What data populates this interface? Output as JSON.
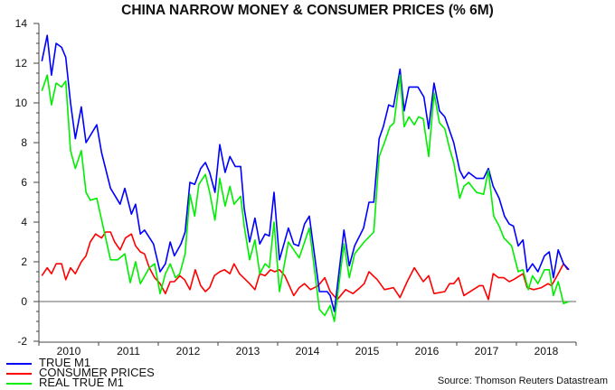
{
  "chart_data": {
    "type": "line",
    "title": "CHINA NARROW MONEY & CONSUMER PRICES (% 6M)",
    "xlabel": "",
    "ylabel": "",
    "ylim": [
      -2,
      14
    ],
    "yticks": [
      -2,
      0,
      2,
      4,
      6,
      8,
      10,
      12,
      14
    ],
    "xlim": [
      2010,
      2019
    ],
    "xticklabels": [
      "2010",
      "2011",
      "2012",
      "2013",
      "2014",
      "2015",
      "2016",
      "2017",
      "2018"
    ],
    "grid": false,
    "legend": "bottom-left",
    "source": "Source: Thomson Reuters Datastream",
    "series": [
      {
        "name": "TRUE M1",
        "color": "#0000ff",
        "points": [
          [
            2010.05,
            12.1
          ],
          [
            2010.14,
            13.4
          ],
          [
            2010.21,
            11.4
          ],
          [
            2010.29,
            13.0
          ],
          [
            2010.38,
            12.8
          ],
          [
            2010.45,
            12.3
          ],
          [
            2010.53,
            10.0
          ],
          [
            2010.61,
            8.2
          ],
          [
            2010.71,
            9.8
          ],
          [
            2010.79,
            8.0
          ],
          [
            2010.97,
            8.9
          ],
          [
            2011.05,
            7.5
          ],
          [
            2011.2,
            5.7
          ],
          [
            2011.36,
            4.9
          ],
          [
            2011.44,
            5.7
          ],
          [
            2011.55,
            4.4
          ],
          [
            2011.62,
            4.9
          ],
          [
            2011.7,
            3.4
          ],
          [
            2011.77,
            3.6
          ],
          [
            2011.92,
            2.9
          ],
          [
            2012.03,
            1.5
          ],
          [
            2012.12,
            1.9
          ],
          [
            2012.2,
            3.0
          ],
          [
            2012.27,
            2.3
          ],
          [
            2012.38,
            2.9
          ],
          [
            2012.45,
            3.5
          ],
          [
            2012.53,
            6.0
          ],
          [
            2012.61,
            5.9
          ],
          [
            2012.71,
            6.7
          ],
          [
            2012.79,
            7.0
          ],
          [
            2012.86,
            6.5
          ],
          [
            2012.95,
            5.5
          ],
          [
            2013.03,
            7.9
          ],
          [
            2013.12,
            6.5
          ],
          [
            2013.2,
            7.3
          ],
          [
            2013.29,
            6.8
          ],
          [
            2013.38,
            6.8
          ],
          [
            2013.44,
            4.7
          ],
          [
            2013.53,
            3.0
          ],
          [
            2013.62,
            4.2
          ],
          [
            2013.7,
            2.9
          ],
          [
            2013.79,
            3.4
          ],
          [
            2013.86,
            3.3
          ],
          [
            2013.94,
            5.5
          ],
          [
            2014.03,
            2.1
          ],
          [
            2014.18,
            3.7
          ],
          [
            2014.27,
            2.9
          ],
          [
            2014.35,
            2.8
          ],
          [
            2014.45,
            3.9
          ],
          [
            2014.53,
            4.3
          ],
          [
            2014.7,
            0.5
          ],
          [
            2014.83,
            0.5
          ],
          [
            2014.88,
            0.3
          ],
          [
            2014.95,
            -0.5
          ],
          [
            2015.11,
            3.6
          ],
          [
            2015.2,
            1.8
          ],
          [
            2015.29,
            2.8
          ],
          [
            2015.44,
            3.7
          ],
          [
            2015.53,
            5.0
          ],
          [
            2015.61,
            5.0
          ],
          [
            2015.7,
            8.2
          ],
          [
            2015.77,
            8.8
          ],
          [
            2015.86,
            9.9
          ],
          [
            2015.94,
            9.8
          ],
          [
            2016.05,
            11.7
          ],
          [
            2016.12,
            9.6
          ],
          [
            2016.2,
            10.8
          ],
          [
            2016.35,
            10.8
          ],
          [
            2016.45,
            10.3
          ],
          [
            2016.53,
            8.7
          ],
          [
            2016.62,
            11.0
          ],
          [
            2016.71,
            9.6
          ],
          [
            2016.8,
            9.3
          ],
          [
            2016.95,
            8.0
          ],
          [
            2017.05,
            6.6
          ],
          [
            2017.12,
            6.2
          ],
          [
            2017.2,
            6.5
          ],
          [
            2017.33,
            6.2
          ],
          [
            2017.45,
            6.2
          ],
          [
            2017.53,
            6.7
          ],
          [
            2017.61,
            5.8
          ],
          [
            2017.71,
            5.2
          ],
          [
            2017.8,
            4.3
          ],
          [
            2017.88,
            3.9
          ],
          [
            2017.95,
            3.8
          ],
          [
            2018.03,
            2.8
          ],
          [
            2018.11,
            3.1
          ],
          [
            2018.18,
            1.5
          ],
          [
            2018.27,
            1.9
          ],
          [
            2018.36,
            1.5
          ],
          [
            2018.47,
            2.3
          ],
          [
            2018.55,
            2.5
          ],
          [
            2018.62,
            1.2
          ],
          [
            2018.7,
            2.6
          ],
          [
            2018.79,
            1.9
          ],
          [
            2018.88,
            1.6
          ]
        ]
      },
      {
        "name": "CONSUMER PRICES",
        "color": "#ff0000",
        "points": [
          [
            2010.05,
            1.3
          ],
          [
            2010.14,
            1.7
          ],
          [
            2010.21,
            1.4
          ],
          [
            2010.29,
            1.9
          ],
          [
            2010.38,
            1.9
          ],
          [
            2010.45,
            1.1
          ],
          [
            2010.53,
            1.7
          ],
          [
            2010.61,
            1.4
          ],
          [
            2010.71,
            2.0
          ],
          [
            2010.79,
            2.3
          ],
          [
            2010.86,
            3.0
          ],
          [
            2010.95,
            3.4
          ],
          [
            2011.05,
            3.2
          ],
          [
            2011.12,
            3.5
          ],
          [
            2011.2,
            3.5
          ],
          [
            2011.27,
            3.0
          ],
          [
            2011.36,
            2.6
          ],
          [
            2011.45,
            3.2
          ],
          [
            2011.55,
            3.4
          ],
          [
            2011.62,
            2.8
          ],
          [
            2011.7,
            2.5
          ],
          [
            2011.77,
            2.4
          ],
          [
            2011.85,
            1.7
          ],
          [
            2011.94,
            1.2
          ],
          [
            2012.03,
            0.9
          ],
          [
            2012.12,
            0.4
          ],
          [
            2012.2,
            1.0
          ],
          [
            2012.27,
            1.0
          ],
          [
            2012.36,
            1.3
          ],
          [
            2012.44,
            1.1
          ],
          [
            2012.53,
            0.6
          ],
          [
            2012.62,
            1.6
          ],
          [
            2012.71,
            0.8
          ],
          [
            2012.79,
            0.5
          ],
          [
            2012.86,
            0.7
          ],
          [
            2012.94,
            1.3
          ],
          [
            2013.03,
            1.5
          ],
          [
            2013.11,
            1.6
          ],
          [
            2013.2,
            1.4
          ],
          [
            2013.27,
            1.9
          ],
          [
            2013.36,
            1.4
          ],
          [
            2013.53,
            0.9
          ],
          [
            2013.62,
            0.6
          ],
          [
            2013.7,
            1.4
          ],
          [
            2013.79,
            1.3
          ],
          [
            2013.88,
            1.6
          ],
          [
            2013.95,
            1.5
          ],
          [
            2014.03,
            1.6
          ],
          [
            2014.12,
            1.3
          ],
          [
            2014.27,
            0.3
          ],
          [
            2014.36,
            0.7
          ],
          [
            2014.45,
            0.9
          ],
          [
            2014.55,
            0.6
          ],
          [
            2014.68,
            0.8
          ],
          [
            2014.79,
            1.2
          ],
          [
            2014.88,
            0.5
          ],
          [
            2015.0,
            0.1
          ],
          [
            2015.14,
            0.6
          ],
          [
            2015.26,
            0.4
          ],
          [
            2015.38,
            0.7
          ],
          [
            2015.45,
            0.9
          ],
          [
            2015.53,
            1.5
          ],
          [
            2015.67,
            1.1
          ],
          [
            2015.79,
            0.6
          ],
          [
            2015.94,
            0.7
          ],
          [
            2016.05,
            0.2
          ],
          [
            2016.17,
            1.0
          ],
          [
            2016.29,
            1.7
          ],
          [
            2016.44,
            1.0
          ],
          [
            2016.53,
            1.3
          ],
          [
            2016.62,
            0.4
          ],
          [
            2016.8,
            0.5
          ],
          [
            2016.88,
            0.9
          ],
          [
            2016.95,
            0.9
          ],
          [
            2017.03,
            1.2
          ],
          [
            2017.12,
            0.3
          ],
          [
            2017.38,
            0.8
          ],
          [
            2017.44,
            0.8
          ],
          [
            2017.53,
            0.1
          ],
          [
            2017.61,
            1.4
          ],
          [
            2017.7,
            1.2
          ],
          [
            2017.79,
            1.2
          ],
          [
            2017.88,
            1.0
          ],
          [
            2017.95,
            1.1
          ],
          [
            2018.11,
            1.4
          ],
          [
            2018.18,
            0.7
          ],
          [
            2018.29,
            0.6
          ],
          [
            2018.42,
            0.7
          ],
          [
            2018.53,
            0.9
          ],
          [
            2018.59,
            0.8
          ],
          [
            2018.7,
            1.4
          ],
          [
            2018.79,
            1.9
          ],
          [
            2018.86,
            1.6
          ]
        ]
      },
      {
        "name": "REAL TRUE M1",
        "color": "#00ee00",
        "points": [
          [
            2010.05,
            10.6
          ],
          [
            2010.14,
            11.4
          ],
          [
            2010.21,
            9.9
          ],
          [
            2010.29,
            11.0
          ],
          [
            2010.38,
            10.8
          ],
          [
            2010.45,
            11.1
          ],
          [
            2010.53,
            7.6
          ],
          [
            2010.61,
            6.7
          ],
          [
            2010.71,
            7.6
          ],
          [
            2010.79,
            5.5
          ],
          [
            2010.86,
            5.1
          ],
          [
            2010.97,
            5.2
          ],
          [
            2011.2,
            2.1
          ],
          [
            2011.32,
            2.1
          ],
          [
            2011.44,
            2.4
          ],
          [
            2011.53,
            0.95
          ],
          [
            2011.62,
            2.0
          ],
          [
            2011.7,
            0.9
          ],
          [
            2011.85,
            1.7
          ],
          [
            2011.94,
            1.9
          ],
          [
            2012.03,
            0.4
          ],
          [
            2012.12,
            1.4
          ],
          [
            2012.2,
            1.9
          ],
          [
            2012.29,
            1.2
          ],
          [
            2012.36,
            1.4
          ],
          [
            2012.45,
            2.4
          ],
          [
            2012.53,
            5.4
          ],
          [
            2012.61,
            4.3
          ],
          [
            2012.68,
            5.9
          ],
          [
            2012.79,
            6.4
          ],
          [
            2012.86,
            5.5
          ],
          [
            2012.95,
            4.1
          ],
          [
            2013.03,
            6.2
          ],
          [
            2013.12,
            4.8
          ],
          [
            2013.2,
            5.8
          ],
          [
            2013.27,
            4.9
          ],
          [
            2013.38,
            5.3
          ],
          [
            2013.44,
            3.8
          ],
          [
            2013.53,
            2.1
          ],
          [
            2013.62,
            3.1
          ],
          [
            2013.7,
            1.4
          ],
          [
            2013.79,
            1.9
          ],
          [
            2013.86,
            1.7
          ],
          [
            2013.94,
            4.0
          ],
          [
            2014.03,
            0.5
          ],
          [
            2014.18,
            3.0
          ],
          [
            2014.27,
            2.6
          ],
          [
            2014.36,
            2.2
          ],
          [
            2014.53,
            3.7
          ],
          [
            2014.7,
            -0.4
          ],
          [
            2014.79,
            -0.7
          ],
          [
            2014.88,
            -0.2
          ],
          [
            2014.95,
            -1.0
          ],
          [
            2015.11,
            2.9
          ],
          [
            2015.2,
            1.2
          ],
          [
            2015.29,
            2.4
          ],
          [
            2015.45,
            3.0
          ],
          [
            2015.61,
            3.5
          ],
          [
            2015.7,
            7.3
          ],
          [
            2015.79,
            8.0
          ],
          [
            2015.88,
            8.8
          ],
          [
            2015.95,
            9.0
          ],
          [
            2016.05,
            11.4
          ],
          [
            2016.12,
            8.8
          ],
          [
            2016.2,
            9.3
          ],
          [
            2016.29,
            8.9
          ],
          [
            2016.36,
            9.3
          ],
          [
            2016.44,
            9.2
          ],
          [
            2016.53,
            7.3
          ],
          [
            2016.62,
            10.5
          ],
          [
            2016.71,
            9.0
          ],
          [
            2016.8,
            8.7
          ],
          [
            2016.88,
            7.7
          ],
          [
            2016.95,
            7.0
          ],
          [
            2017.05,
            5.2
          ],
          [
            2017.12,
            5.8
          ],
          [
            2017.2,
            6.0
          ],
          [
            2017.33,
            5.5
          ],
          [
            2017.45,
            5.4
          ],
          [
            2017.53,
            6.6
          ],
          [
            2017.62,
            4.3
          ],
          [
            2017.71,
            3.8
          ],
          [
            2017.79,
            3.2
          ],
          [
            2017.92,
            2.8
          ],
          [
            2018.03,
            1.5
          ],
          [
            2018.11,
            1.6
          ],
          [
            2018.2,
            0.6
          ],
          [
            2018.27,
            1.3
          ],
          [
            2018.36,
            0.9
          ],
          [
            2018.47,
            1.6
          ],
          [
            2018.55,
            1.6
          ],
          [
            2018.62,
            0.3
          ],
          [
            2018.7,
            1.0
          ],
          [
            2018.79,
            -0.1
          ],
          [
            2018.88,
            0.0
          ]
        ]
      }
    ]
  }
}
